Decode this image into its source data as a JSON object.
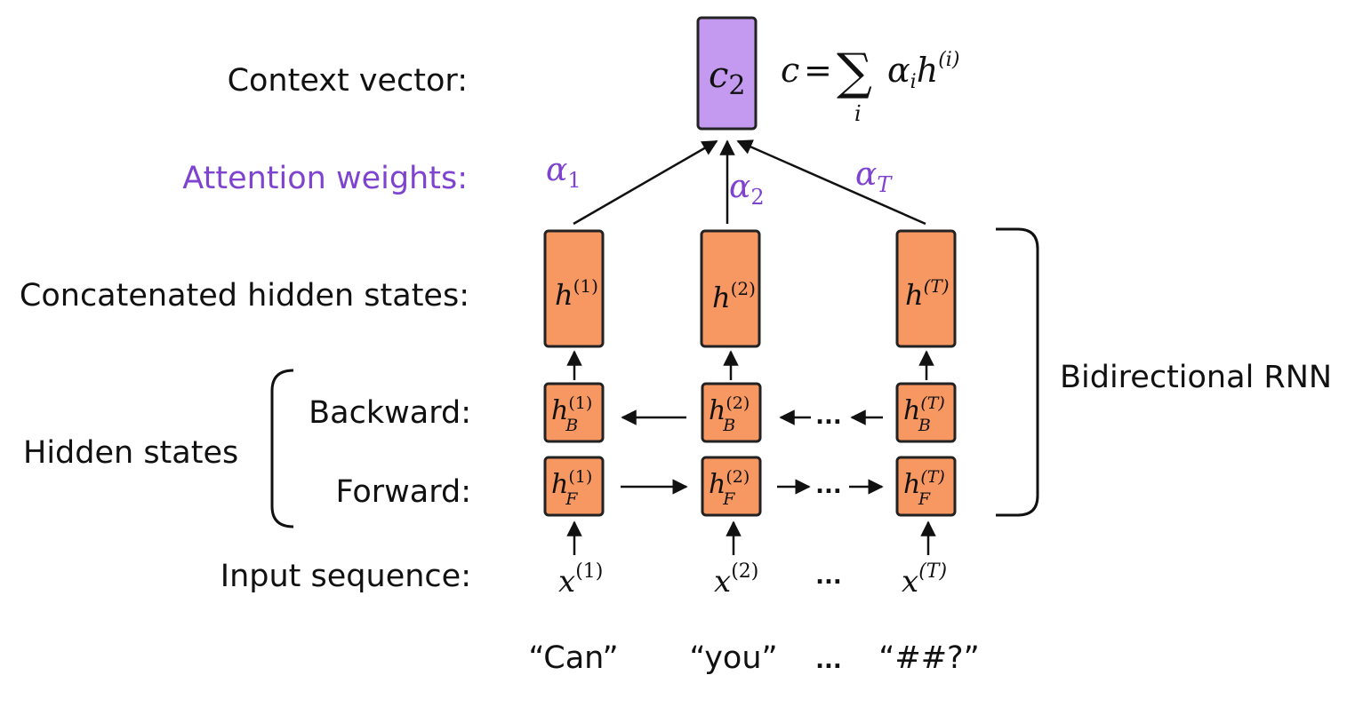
{
  "colors": {
    "context_box": "#c39af0",
    "hidden_box": "#f79762",
    "attention_text": "#7f44cf",
    "text": "#111111"
  },
  "labels": {
    "context_vector": "Context vector:",
    "attention_weights": "Attention weights:",
    "concatenated": "Concatenated hidden states:",
    "backward": "Backward:",
    "forward": "Forward:",
    "input_sequence": "Input sequence:",
    "hidden_states": "Hidden states",
    "bidirectional_rnn": "Bidirectional RNN"
  },
  "context": {
    "symbol": "c",
    "subscript": "2",
    "formula": {
      "lhs": "c",
      "equals": "=",
      "sum": "∑",
      "sum_index": "i",
      "alpha": "α",
      "alpha_index": "i",
      "h": "h",
      "h_superscript": "(i)"
    }
  },
  "attention": {
    "alpha1": {
      "symbol": "α",
      "sub": "1"
    },
    "alpha2": {
      "symbol": "α",
      "sub": "2"
    },
    "alphaT": {
      "symbol": "α",
      "sub": "T"
    }
  },
  "columns": [
    {
      "concat": {
        "base": "h",
        "sup": "(1)"
      },
      "backward": {
        "base": "h",
        "sup": "(1)",
        "sub": "B"
      },
      "forward": {
        "base": "h",
        "sup": "(1)",
        "sub": "F"
      },
      "input": {
        "base": "x",
        "sup": "(1)"
      },
      "word": "“Can”"
    },
    {
      "concat": {
        "base": "h",
        "sup": "(2)"
      },
      "backward": {
        "base": "h",
        "sup": "(2)",
        "sub": "B"
      },
      "forward": {
        "base": "h",
        "sup": "(2)",
        "sub": "F"
      },
      "input": {
        "base": "x",
        "sup": "(2)"
      },
      "word": "“you”"
    },
    {
      "concat": {
        "base": "h",
        "sup": "(T)"
      },
      "backward": {
        "base": "h",
        "sup": "(T)",
        "sub": "B"
      },
      "forward": {
        "base": "h",
        "sup": "(T)",
        "sub": "F"
      },
      "input": {
        "base": "x",
        "sup": "(T)"
      },
      "word": "“##?”"
    }
  ],
  "ellipsis": "..."
}
